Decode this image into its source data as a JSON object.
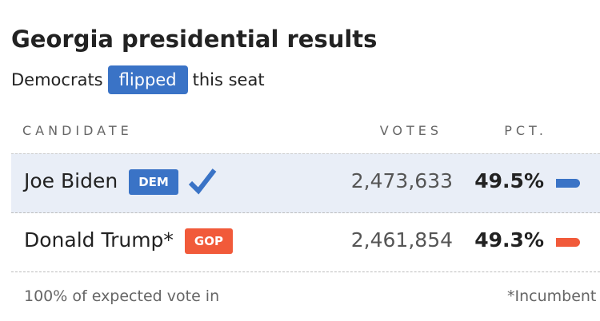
{
  "header": {
    "title": "Georgia presidential results",
    "subtitle_before": "Democrats",
    "badge": "flipped",
    "subtitle_after": "this seat",
    "badge_color": "#3a73c6"
  },
  "table": {
    "columns": [
      "CANDIDATE",
      "VOTES",
      "PCT."
    ],
    "rows": [
      {
        "name": "Joe Biden",
        "party": "DEM",
        "votes": "2,473,633",
        "pct": "49.5%",
        "winner": true,
        "color": "#3a73c6"
      },
      {
        "name": "Donald Trump*",
        "party": "GOP",
        "votes": "2,461,854",
        "pct": "49.3%",
        "winner": false,
        "color": "#f15a3a"
      }
    ]
  },
  "footer": {
    "left": "100% of expected vote in",
    "right": "*Incumbent"
  }
}
